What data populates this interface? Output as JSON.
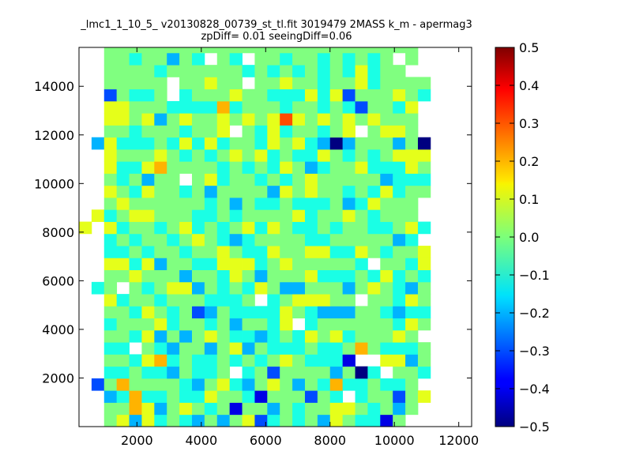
{
  "chart_data": {
    "type": "heatmap",
    "title": "_lmc1_1_10_5_ v20130828_00739_st_tl.fit 3019479 2MASS k_m - apermag3",
    "subtitle": "zpDiff= 0.01 seeingDiff=0.06",
    "xlabel": "",
    "ylabel": "",
    "xlim": [
      200,
      12400
    ],
    "ylim": [
      0,
      15600
    ],
    "x_ticks": [
      "2000",
      "4000",
      "6000",
      "8000",
      "10000",
      "12000"
    ],
    "y_ticks": [
      "2000",
      "4000",
      "6000",
      "8000",
      "10000",
      "12000",
      "14000"
    ],
    "colorbar": {
      "colormap": "jet",
      "range": [
        -0.5,
        0.5
      ],
      "ticks": [
        "0.5",
        "0.4",
        "0.3",
        "0.2",
        "0.1",
        "0.0",
        "−0.1",
        "−0.2",
        "−0.3",
        "−0.4",
        "−0.5"
      ]
    },
    "grid": {
      "x0": 200,
      "y0": 0,
      "cell_w": 390,
      "cell_h": 496,
      "rows_bottom_to_top": [
        ".. .. 00 01 -02 01 -01 00 -01 -02 00 -02 00 01 -03 -01 00 -01 00 -02 01 00 -01 -01 -04 00 .. .. .. ..",
        ".. .. 00 00 02 01 -02 00 01 00 -01 00 -04 00 00 -02 00 -01 00 00 01 01 00 -01 00 -02 00 .. .. ..",
        ".. .. -02 -01 02 -01 -01 00 -01 -01 01 00 00 -01 -04 00 00 00 -03 00 -01 .. -01 00 00 -03 00 01 .. ..",
        ".. -03 00 02 00 00 00 00 -01 -02 00 01 -01 -02 00 01 00 -02 00 -01 02 -01 -01 00 -01 -01 00 .. .. ..",
        ".. .. -01 -01 00 -01 -01 -02 00 -01 -01 00 .. -01 00 -03 00 00 00 00 -02 00 -05 -01 .. 00 00 -01 .. ..",
        ".. .. 00 00 -01 01 02 -01 00 -01 -01 00 -01 00 -01 00 01 00 -01 -01 -01 -04 .. .. 01 01 -02 00 .. ..",
        ".. .. -01 -01 .. 00 -01 -02 00 00 -02 00 01 -02 00 -01 -01 -01 00 -01 -01 00 02 00 -01 -01 -01 00 .. ..",
        ".. .. 00 00 -01 01 -02 00 -02 00 01 00 -01 -01 -02 -01 00 -01 01 00 01 -01 00 00 00 01 00 .. .. ..",
        ".. .. -01 00 00 00 01 -01 00 00 -01 00 -02 00 00 -01 01 .. -01 00 00 00 00 00 00 -01 01 00 .. ..",
        ".. .. 00 00 -01 01 00 -01 00 -03 -02 00 -01 -01 -01 -01 01 00 -01 -02 -02 -02 00 00 -01 -02 -01 -01 .. ..",
        ".. .. 01 -01 00 00 -01 00 00 00 -01 -01 -01 00 .. -01 00 01 01 01 00 00 .. 00 00 -01 01 00 .. ..",
        ".. -01 00 .. 00 -01 00 01 01 -02 00 -01 00 -01 01 00 -02 -02 00 00 00 -02 00 01 00 -01 -02 00 .. ..",
        ".. .. 00 00 01 00 00 00 -02 00 00 -01 01 00 -02 00 00 00 01 -01 -01 -01 00 -01 01 -01 00 -01 .. ..",
        ".. .. 01 01 -01 01 -02 00 00 -01 -01 01 01 01 -01 00 01 00 00 00 00 00 -01 .. 00 00 -01 01 .. ..",
        ".. .. -01 -01 00 -01 00 00 -01 00 00 01 00 -01 -01 01 00 00 01 01 -01 -01 01 00 -01 00 00 01 .. ..",
        ".. .. -01 00 -01 00 00 -01 00 01 00 -01 -02 -01 00 00 00 00 -01 -01 00 00 00 00 00 -02 -01 .. .. ..",
        "01 .. 01 -01 00 00 -01 00 01 -01 00 -01 00 01 -01 01 00 -01 -01 00 -01 00 00 -01 -01 00 01 -01 .. ..",
        ".. 01 -01 00 01 01 00 00 00 -01 -01 00 -01 00 00 00 00 01 -01 00 00 01 00 -01 00 00 00 .. .. ..",
        ".. .. 00 01 00 00 00 00 00 00 -01 00 -02 00 -01 -01 00 -01 -01 -01 00 -02 -01 01 00 00 00 .. .. ..",
        ".. .. 01 00 -01 01 00 00 -01 00 -02 00 00 00 00 -02 01 00 01 00 00 -01 00 -01 01 -01 00 00 .. ..",
        ".. .. 00 -01 00 -02 00 00 .. 00 01 -01 00 00 -01 00 -01 00 01 00 00 00 00 00 -02 -01 -01 -01 .. ..",
        ".. .. 01 -01 -01 01 02 00 00 00 00 -01 00 -01 00 -01 01 00 -02 -01 00 00 01 -01 -01 -01 01 00 .. ..",
        ".. .. 01 00 00 00 01 00 -01 00 -01 00 01 00 01 -01 00 -01 -01 01 00 -01 00 -01 00 01 01 01 .. ..",
        ".. -02 01 -01 -01 -01 00 -01 01 -01 01 -01 00 00 -01 01 00 01 -01 -02 -05 -02 00 00 00 -02 00 -05 .. ..",
        ".. .. 00 00 -01 00 00 00 -01 00 00 01 .. 00 -01 01 -01 00 00 -01 00 01 .. 00 01 01 00 .. .. ..",
        ".. .. 01 01 00 01 -02 00 01 00 00 01 00 01 00 01 03 01 00 01 00 01 00 01 00 00 00 .. .. ..",
        ".. .. 01 01 00 00 00 -01 -01 -01 -01 02 -01 00 00 00 -01 00 00 -01 00 -01 -03 00 00 -01 01 .. .. ..",
        ".. .. -03 00 -01 -01 00 .. -01 00 00 00 01 00 00 -01 -01 -01 01 -01 01 -03 00 00 00 01 00 -01 .. ..",
        ".. .. 00 00 00 00 00 .. 00 00 01 00 00 .. 00 00 01 00 00 -01 00 00 01 -01 00 00 00 00 .. ..",
        ".. .. 00 00 00 00 -01 00 00 00 00 00 00 -01 00 -01 00 -01 00 -01 00 -01 01 -01 00 00 .. .. .. ..",
        ".. .. 00 00 -01 00 00 -02 00 -01 .. 00 -01 .. 00 00 -01 00 00 -01 00 -01 00 -01 00 .. 00 .. .. ..",
        ".. .. 00 00 00 00 00 00 00 00 00 00 00 00 00 00 00 00 00 00 00 00 00 00 00 00 00 .. .. .."
      ],
      "value_scale": 0.1,
      "missing": ".."
    }
  },
  "colors": {
    "background": "#ffffff",
    "missing_cell": "#ffffff"
  }
}
